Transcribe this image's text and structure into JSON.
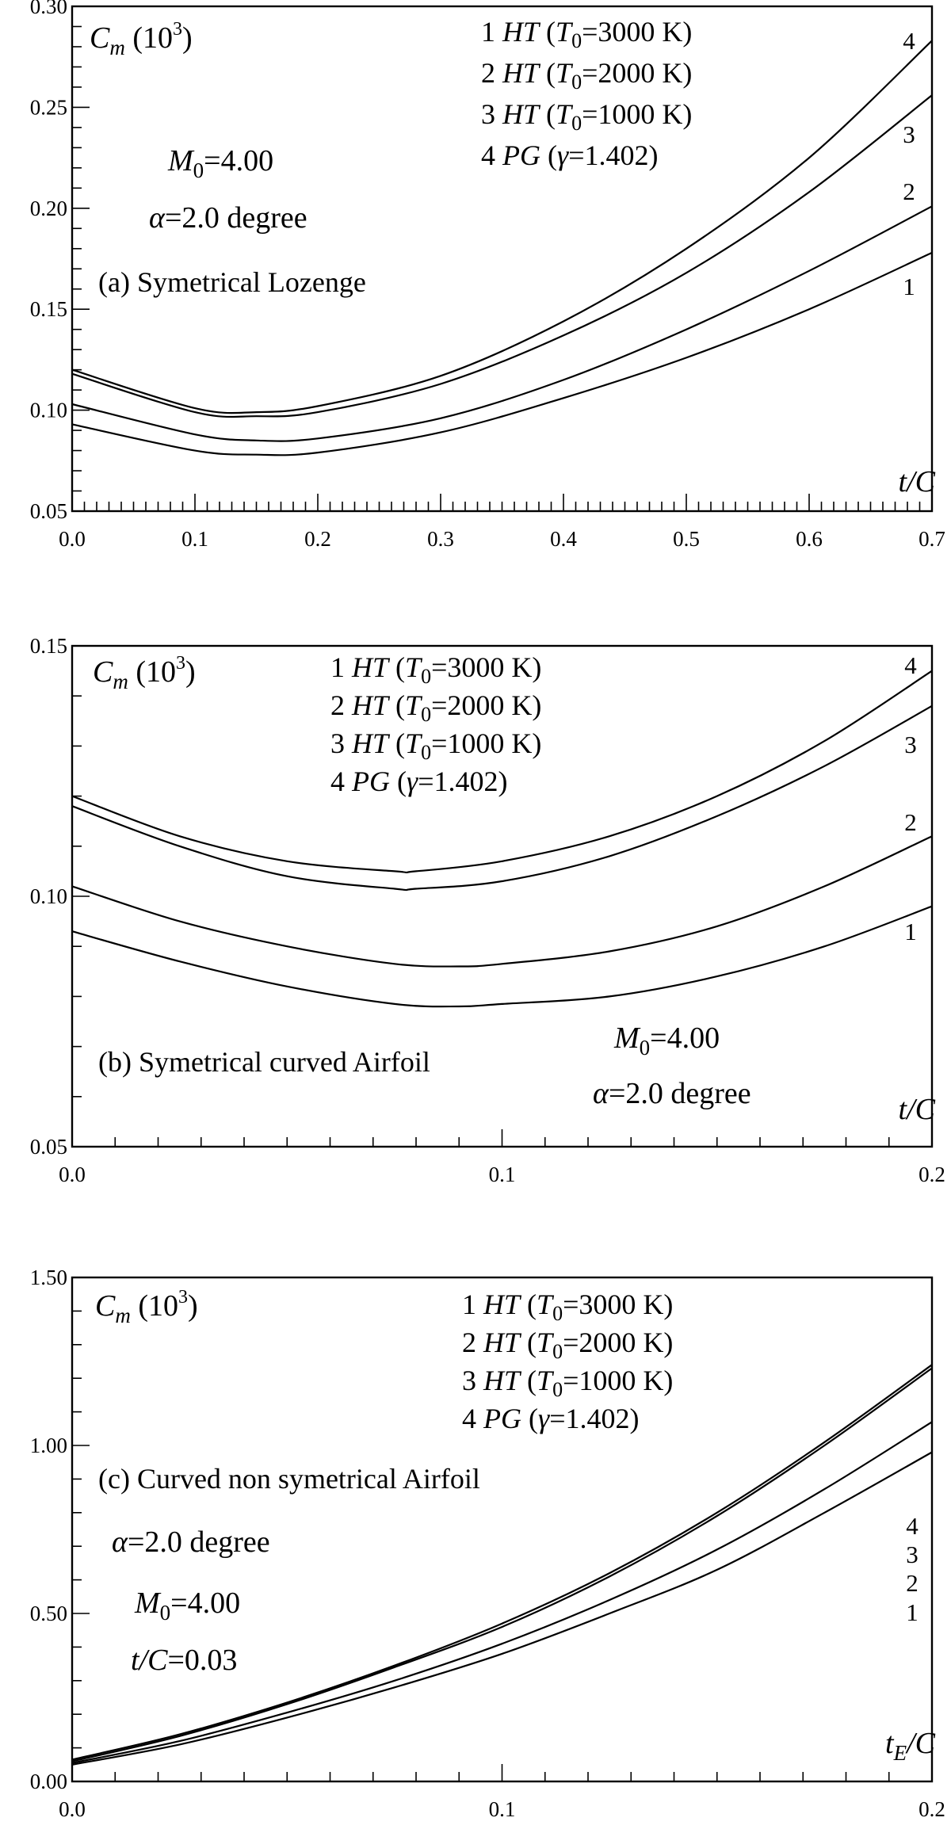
{
  "chart_data": [
    {
      "type": "line",
      "panel": "(a)",
      "subtitle": "Symetrical Lozenge",
      "ylabel_main": "C",
      "ylabel_sub": "m",
      "ylabel_scale": "(10",
      "ylabel_exp": "3",
      "ylabel_close": ")",
      "xlabel_main": "t",
      "xlabel_sub": "",
      "xlabel_rest": "/C",
      "xlim": [
        0.0,
        0.7
      ],
      "ylim": [
        0.05,
        0.3
      ],
      "x_ticks": [
        "0.0",
        "0.1",
        "0.2",
        "0.3",
        "0.4",
        "0.5",
        "0.6",
        "0.7"
      ],
      "y_ticks": [
        "0.05",
        "0.10",
        "0.15",
        "0.20",
        "0.25",
        "0.30"
      ],
      "legend": [
        {
          "num": "1",
          "gas": "HT",
          "param": "T",
          "param_sub": "0",
          "value": "=3000 K"
        },
        {
          "num": "2",
          "gas": "HT",
          "param": "T",
          "param_sub": "0",
          "value": "=2000 K"
        },
        {
          "num": "3",
          "gas": "HT",
          "param": "T",
          "param_sub": "0",
          "value": "=1000 K"
        },
        {
          "num": "4",
          "gas": "PG",
          "param": "γ",
          "param_sub": "",
          "value": "=1.402"
        }
      ],
      "annotations": [
        {
          "main": "M",
          "sub": "0",
          "rest": "=4.00"
        },
        {
          "main": "α",
          "sub": "",
          "rest": "=2.0 degree"
        }
      ],
      "series": [
        {
          "name": "1",
          "x": [
            0.0,
            0.1,
            0.15,
            0.2,
            0.3,
            0.4,
            0.5,
            0.6,
            0.7
          ],
          "y": [
            0.093,
            0.08,
            0.078,
            0.079,
            0.089,
            0.106,
            0.126,
            0.15,
            0.178
          ]
        },
        {
          "name": "2",
          "x": [
            0.0,
            0.1,
            0.15,
            0.2,
            0.3,
            0.4,
            0.5,
            0.6,
            0.7
          ],
          "y": [
            0.103,
            0.088,
            0.085,
            0.086,
            0.096,
            0.115,
            0.14,
            0.169,
            0.201
          ]
        },
        {
          "name": "3",
          "x": [
            0.0,
            0.1,
            0.15,
            0.2,
            0.3,
            0.4,
            0.5,
            0.6,
            0.7
          ],
          "y": [
            0.118,
            0.099,
            0.097,
            0.099,
            0.113,
            0.137,
            0.168,
            0.208,
            0.256
          ]
        },
        {
          "name": "4",
          "x": [
            0.0,
            0.1,
            0.15,
            0.2,
            0.3,
            0.4,
            0.5,
            0.6,
            0.7
          ],
          "y": [
            0.12,
            0.101,
            0.099,
            0.102,
            0.117,
            0.144,
            0.18,
            0.225,
            0.283
          ]
        }
      ]
    },
    {
      "type": "line",
      "panel": "(b)",
      "subtitle": "Symetrical curved Airfoil",
      "ylabel_main": "C",
      "ylabel_sub": "m",
      "ylabel_scale": "(10",
      "ylabel_exp": "3",
      "ylabel_close": ")",
      "xlabel_main": "t",
      "xlabel_sub": "",
      "xlabel_rest": "/C",
      "xlim": [
        0.0,
        0.2
      ],
      "ylim": [
        0.05,
        0.15
      ],
      "x_ticks": [
        "0.0",
        "0.1",
        "0.2"
      ],
      "y_ticks": [
        "0.05",
        "0.10",
        "0.15"
      ],
      "legend": [
        {
          "num": "1",
          "gas": "HT",
          "param": "T",
          "param_sub": "0",
          "value": "=3000 K"
        },
        {
          "num": "2",
          "gas": "HT",
          "param": "T",
          "param_sub": "0",
          "value": "=2000 K"
        },
        {
          "num": "3",
          "gas": "HT",
          "param": "T",
          "param_sub": "0",
          "value": "=1000 K"
        },
        {
          "num": "4",
          "gas": "PG",
          "param": "γ",
          "param_sub": "",
          "value": "=1.402"
        }
      ],
      "annotations": [
        {
          "main": "M",
          "sub": "0",
          "rest": "=4.00"
        },
        {
          "main": "α",
          "sub": "",
          "rest": "=2.0 degree"
        }
      ],
      "series": [
        {
          "name": "1",
          "x": [
            0.0,
            0.025,
            0.05,
            0.075,
            0.09,
            0.1,
            0.125,
            0.15,
            0.175,
            0.2
          ],
          "y": [
            0.093,
            0.087,
            0.082,
            0.0785,
            0.078,
            0.0785,
            0.08,
            0.084,
            0.09,
            0.098
          ]
        },
        {
          "name": "2",
          "x": [
            0.0,
            0.025,
            0.05,
            0.075,
            0.09,
            0.1,
            0.125,
            0.15,
            0.175,
            0.2
          ],
          "y": [
            0.102,
            0.095,
            0.09,
            0.0865,
            0.086,
            0.0865,
            0.089,
            0.094,
            0.102,
            0.112
          ]
        },
        {
          "name": "3",
          "x": [
            0.0,
            0.025,
            0.05,
            0.075,
            0.08,
            0.1,
            0.125,
            0.15,
            0.175,
            0.2
          ],
          "y": [
            0.118,
            0.11,
            0.104,
            0.1015,
            0.1015,
            0.103,
            0.108,
            0.116,
            0.126,
            0.138
          ]
        },
        {
          "name": "4",
          "x": [
            0.0,
            0.025,
            0.05,
            0.075,
            0.08,
            0.1,
            0.125,
            0.15,
            0.175,
            0.2
          ],
          "y": [
            0.12,
            0.112,
            0.107,
            0.105,
            0.105,
            0.107,
            0.112,
            0.12,
            0.131,
            0.145
          ]
        }
      ]
    },
    {
      "type": "line",
      "panel": "(c)",
      "subtitle": "Curved non symetrical Airfoil",
      "ylabel_main": "C",
      "ylabel_sub": "m",
      "ylabel_scale": "(10",
      "ylabel_exp": "3",
      "ylabel_close": ")",
      "xlabel_main": "t",
      "xlabel_sub": "E",
      "xlabel_rest": "/C",
      "xlim": [
        0.0,
        0.2
      ],
      "ylim": [
        0.0,
        1.5
      ],
      "x_ticks": [
        "0.0",
        "0.1",
        "0.2"
      ],
      "y_ticks": [
        "0.00",
        "0.50",
        "1.00",
        "1.50"
      ],
      "legend": [
        {
          "num": "1",
          "gas": "HT",
          "param": "T",
          "param_sub": "0",
          "value": "=3000 K"
        },
        {
          "num": "2",
          "gas": "HT",
          "param": "T",
          "param_sub": "0",
          "value": "=2000 K"
        },
        {
          "num": "3",
          "gas": "HT",
          "param": "T",
          "param_sub": "0",
          "value": "=1000 K"
        },
        {
          "num": "4",
          "gas": "PG",
          "param": "γ",
          "param_sub": "",
          "value": "=1.402"
        }
      ],
      "annotations": [
        {
          "main": "α",
          "sub": "",
          "rest": "=2.0 degree"
        },
        {
          "main": "M",
          "sub": "0",
          "rest": "=4.00"
        },
        {
          "main": "t/C",
          "sub": "",
          "rest": "=0.03"
        }
      ],
      "series": [
        {
          "name": "1",
          "x": [
            0.0,
            0.025,
            0.05,
            0.075,
            0.1,
            0.125,
            0.15,
            0.175,
            0.2
          ],
          "y": [
            0.05,
            0.11,
            0.19,
            0.28,
            0.38,
            0.5,
            0.63,
            0.8,
            0.98
          ]
        },
        {
          "name": "2",
          "x": [
            0.0,
            0.025,
            0.05,
            0.075,
            0.1,
            0.125,
            0.15,
            0.175,
            0.2
          ],
          "y": [
            0.055,
            0.12,
            0.205,
            0.3,
            0.41,
            0.54,
            0.69,
            0.87,
            1.07
          ]
        },
        {
          "name": "3",
          "x": [
            0.0,
            0.025,
            0.05,
            0.075,
            0.1,
            0.125,
            0.15,
            0.175,
            0.2
          ],
          "y": [
            0.06,
            0.135,
            0.23,
            0.34,
            0.46,
            0.61,
            0.79,
            1.0,
            1.23
          ]
        },
        {
          "name": "4",
          "x": [
            0.0,
            0.025,
            0.05,
            0.075,
            0.1,
            0.125,
            0.15,
            0.175,
            0.2
          ],
          "y": [
            0.065,
            0.14,
            0.235,
            0.345,
            0.47,
            0.62,
            0.8,
            1.01,
            1.24
          ]
        }
      ]
    }
  ]
}
